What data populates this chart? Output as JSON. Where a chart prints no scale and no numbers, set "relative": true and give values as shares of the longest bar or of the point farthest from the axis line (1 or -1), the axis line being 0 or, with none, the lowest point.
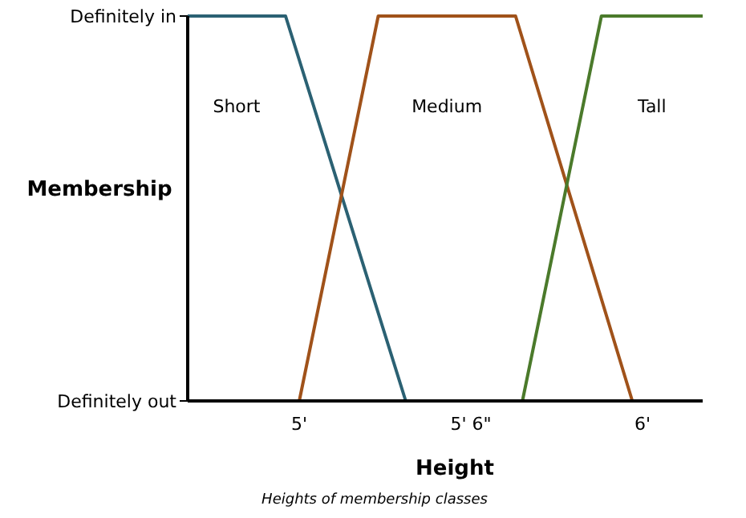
{
  "chart_data": {
    "type": "line",
    "relative": true,
    "xlabel": "Height",
    "ylabel": "Membership",
    "annotations": [
      "Definitely in",
      "Definitely out",
      "Heights of membership classes"
    ],
    "xlim": [
      4.675,
      6.175
    ],
    "xticks": [
      {
        "value": 5,
        "label": "5'"
      },
      {
        "value": 5.5,
        "label": "5' 6\""
      },
      {
        "value": 6,
        "label": "6'"
      }
    ],
    "grid": false,
    "legend": false,
    "marker": "none",
    "line_style": "solid",
    "series": [
      {
        "name": "Short",
        "color": "#2b6173",
        "x": [
          4.675,
          4.96,
          5.31
        ],
        "values": [
          1,
          1,
          0
        ]
      },
      {
        "name": "Medium",
        "color": "#a0521a",
        "x": [
          5.0,
          5.23,
          5.63,
          5.97
        ],
        "values": [
          0,
          1,
          1,
          0
        ]
      },
      {
        "name": "Tall",
        "color": "#4b7a2b",
        "x": [
          5.65,
          5.88,
          6.175
        ],
        "values": [
          0,
          1,
          1
        ]
      }
    ]
  }
}
